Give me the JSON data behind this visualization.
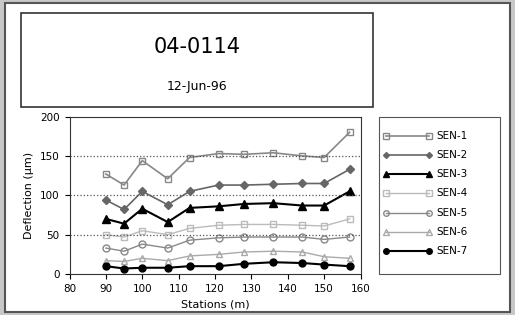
{
  "title_line1": "04-0114",
  "title_line2": "12-Jun-96",
  "xlabel": "Stations (m)",
  "ylabel": "Deflection (μm)",
  "xlim": [
    80,
    160
  ],
  "ylim": [
    0,
    200
  ],
  "xticks": [
    80,
    90,
    100,
    110,
    120,
    130,
    140,
    150,
    160
  ],
  "yticks": [
    0,
    50,
    100,
    150,
    200
  ],
  "hlines": [
    50,
    100,
    150
  ],
  "x_positions": [
    90,
    95,
    100,
    107,
    113,
    121,
    128,
    136,
    144,
    150,
    157
  ],
  "sensor_data": {
    "SEN-1": [
      127,
      113,
      144,
      121,
      148,
      153,
      152,
      154,
      150,
      148,
      180
    ],
    "SEN-2": [
      94,
      82,
      105,
      88,
      105,
      113,
      113,
      114,
      115,
      115,
      133
    ],
    "SEN-3": [
      70,
      64,
      83,
      66,
      84,
      86,
      89,
      90,
      87,
      87,
      105
    ],
    "SEN-4": [
      50,
      47,
      55,
      50,
      58,
      62,
      63,
      63,
      62,
      61,
      70
    ],
    "SEN-5": [
      33,
      29,
      38,
      33,
      43,
      46,
      47,
      47,
      47,
      44,
      47
    ],
    "SEN-6": [
      17,
      16,
      20,
      17,
      23,
      25,
      28,
      29,
      28,
      22,
      20
    ],
    "SEN-7": [
      10,
      7,
      8,
      8,
      10,
      10,
      13,
      15,
      14,
      12,
      10
    ]
  },
  "sensor_styles": {
    "SEN-1": {
      "color": "#888888",
      "marker": "s",
      "fillstyle": "none",
      "lw": 1.2,
      "ms": 5
    },
    "SEN-2": {
      "color": "#666666",
      "marker": "D",
      "fillstyle": "full",
      "lw": 1.2,
      "ms": 4
    },
    "SEN-3": {
      "color": "#000000",
      "marker": "^",
      "fillstyle": "full",
      "lw": 1.5,
      "ms": 6
    },
    "SEN-4": {
      "color": "#bbbbbb",
      "marker": "s",
      "fillstyle": "none",
      "lw": 1.0,
      "ms": 5
    },
    "SEN-5": {
      "color": "#888888",
      "marker": "o",
      "fillstyle": "none",
      "lw": 1.0,
      "ms": 5
    },
    "SEN-6": {
      "color": "#aaaaaa",
      "marker": "^",
      "fillstyle": "none",
      "lw": 1.0,
      "ms": 5
    },
    "SEN-7": {
      "color": "#000000",
      "marker": "o",
      "fillstyle": "full",
      "lw": 1.5,
      "ms": 5
    }
  },
  "legend_labels": [
    "SEN-1",
    "SEN-2",
    "SEN-3",
    "SEN-4",
    "SEN-5",
    "SEN-6",
    "SEN-7"
  ],
  "outer_bg": "#c8c8c8",
  "inner_bg": "#ffffff",
  "title_fontsize": 15,
  "subtitle_fontsize": 9,
  "axis_fontsize": 8,
  "tick_fontsize": 7.5,
  "legend_fontsize": 7.5
}
